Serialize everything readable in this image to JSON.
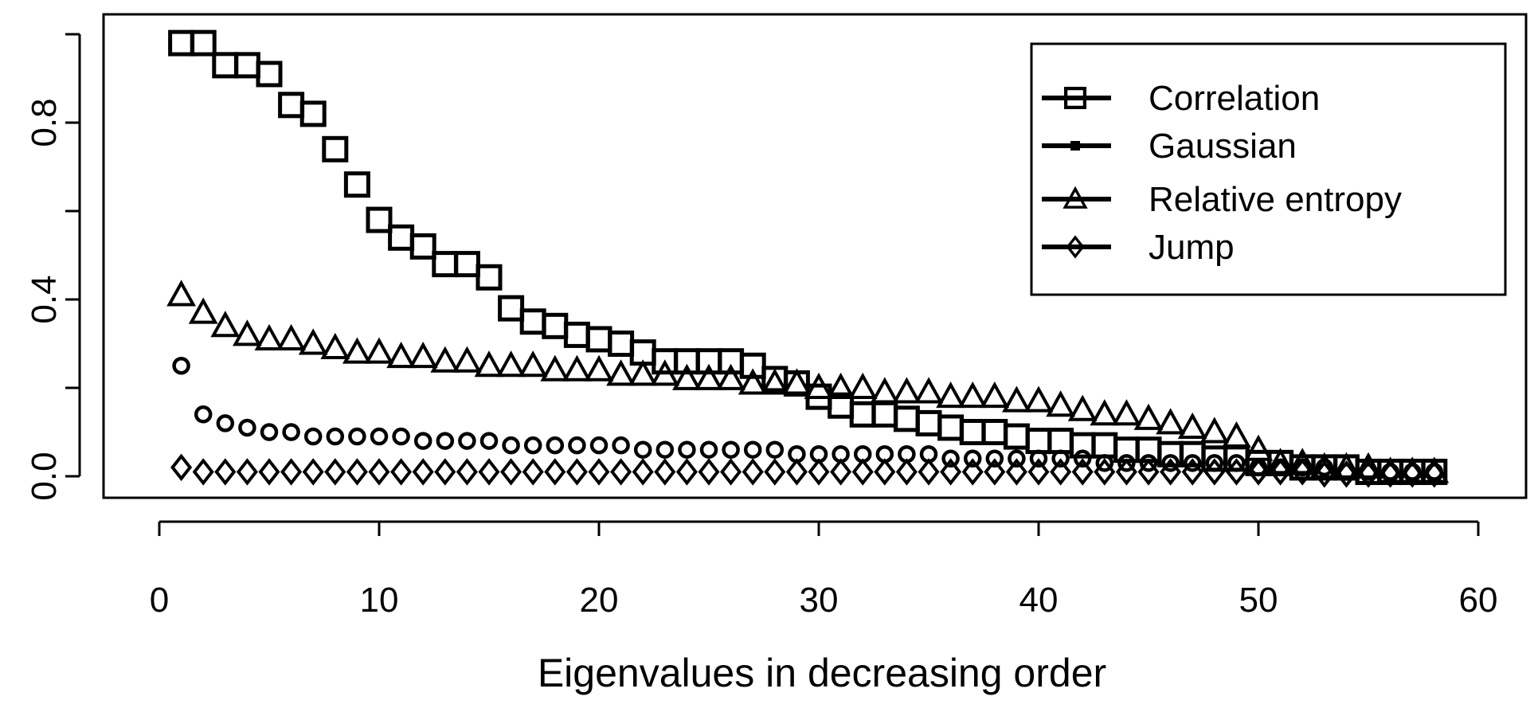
{
  "chart_data": {
    "type": "scatter",
    "title": "",
    "xlabel": "Eigenvalues in decreasing order",
    "ylabel": "",
    "xlim": [
      0,
      60
    ],
    "ylim": [
      0,
      1
    ],
    "x_ticks": [
      "0",
      "10",
      "20",
      "30",
      "40",
      "50",
      "60"
    ],
    "y_ticks": [
      "0.0",
      "0.4",
      "0.8"
    ],
    "legend_position": "top-right",
    "legend": [
      "Correlation",
      "Gaussian",
      "Relative entropy",
      "Jump"
    ],
    "series": [
      {
        "name": "Correlation",
        "marker": "square",
        "x": [
          1,
          2,
          3,
          4,
          5,
          6,
          7,
          8,
          9,
          10,
          11,
          12,
          13,
          14,
          15,
          16,
          17,
          18,
          19,
          20,
          21,
          22,
          23,
          24,
          25,
          26,
          27,
          28,
          29,
          30,
          31,
          32,
          33,
          34,
          35,
          36,
          37,
          38,
          39,
          40,
          41,
          42,
          43,
          44,
          45,
          46,
          47,
          48,
          49,
          50,
          51,
          52,
          53,
          54,
          55,
          56,
          57,
          58
        ],
        "values": [
          0.98,
          0.98,
          0.93,
          0.93,
          0.91,
          0.84,
          0.82,
          0.74,
          0.66,
          0.58,
          0.54,
          0.52,
          0.48,
          0.48,
          0.45,
          0.38,
          0.35,
          0.34,
          0.32,
          0.31,
          0.3,
          0.28,
          0.26,
          0.26,
          0.26,
          0.26,
          0.25,
          0.22,
          0.21,
          0.18,
          0.16,
          0.14,
          0.14,
          0.13,
          0.12,
          0.11,
          0.1,
          0.1,
          0.09,
          0.08,
          0.08,
          0.07,
          0.07,
          0.06,
          0.06,
          0.05,
          0.05,
          0.04,
          0.04,
          0.03,
          0.03,
          0.02,
          0.02,
          0.02,
          0.01,
          0.01,
          0.01,
          0.01
        ]
      },
      {
        "name": "Gaussian",
        "marker": "small-circle",
        "x": [
          1,
          2,
          3,
          4,
          5,
          6,
          7,
          8,
          9,
          10,
          11,
          12,
          13,
          14,
          15,
          16,
          17,
          18,
          19,
          20,
          21,
          22,
          23,
          24,
          25,
          26,
          27,
          28,
          29,
          30,
          31,
          32,
          33,
          34,
          35,
          36,
          37,
          38,
          39,
          40,
          41,
          42,
          43,
          44,
          45,
          46,
          47,
          48,
          49,
          50,
          51,
          52,
          53,
          54,
          55,
          56,
          57,
          58
        ],
        "values": [
          0.25,
          0.14,
          0.12,
          0.11,
          0.1,
          0.1,
          0.09,
          0.09,
          0.09,
          0.09,
          0.09,
          0.08,
          0.08,
          0.08,
          0.08,
          0.07,
          0.07,
          0.07,
          0.07,
          0.07,
          0.07,
          0.06,
          0.06,
          0.06,
          0.06,
          0.06,
          0.06,
          0.06,
          0.05,
          0.05,
          0.05,
          0.05,
          0.05,
          0.05,
          0.05,
          0.04,
          0.04,
          0.04,
          0.04,
          0.04,
          0.04,
          0.04,
          0.03,
          0.03,
          0.03,
          0.03,
          0.03,
          0.03,
          0.03,
          0.02,
          0.02,
          0.02,
          0.02,
          0.01,
          0.01,
          0.01,
          0.01,
          0.01
        ]
      },
      {
        "name": "Relative entropy",
        "marker": "triangle",
        "x": [
          1,
          2,
          3,
          4,
          5,
          6,
          7,
          8,
          9,
          10,
          11,
          12,
          13,
          14,
          15,
          16,
          17,
          18,
          19,
          20,
          21,
          22,
          23,
          24,
          25,
          26,
          27,
          28,
          29,
          30,
          31,
          32,
          33,
          34,
          35,
          36,
          37,
          38,
          39,
          40,
          41,
          42,
          43,
          44,
          45,
          46,
          47,
          48,
          49,
          50,
          51,
          52,
          53,
          54,
          55,
          56,
          57,
          58
        ],
        "values": [
          0.41,
          0.37,
          0.34,
          0.32,
          0.31,
          0.31,
          0.3,
          0.29,
          0.28,
          0.28,
          0.27,
          0.27,
          0.26,
          0.26,
          0.25,
          0.25,
          0.25,
          0.24,
          0.24,
          0.24,
          0.23,
          0.23,
          0.23,
          0.22,
          0.22,
          0.22,
          0.21,
          0.21,
          0.21,
          0.2,
          0.2,
          0.2,
          0.19,
          0.19,
          0.19,
          0.18,
          0.18,
          0.18,
          0.17,
          0.17,
          0.16,
          0.15,
          0.14,
          0.14,
          0.13,
          0.12,
          0.11,
          0.1,
          0.09,
          0.06,
          0.03,
          0.03,
          0.02,
          0.02,
          0.02,
          0.01,
          0.01,
          0.01
        ]
      },
      {
        "name": "Jump",
        "marker": "diamond",
        "x": [
          1,
          2,
          3,
          4,
          5,
          6,
          7,
          8,
          9,
          10,
          11,
          12,
          13,
          14,
          15,
          16,
          17,
          18,
          19,
          20,
          21,
          22,
          23,
          24,
          25,
          26,
          27,
          28,
          29,
          30,
          31,
          32,
          33,
          34,
          35,
          36,
          37,
          38,
          39,
          40,
          41,
          42,
          43,
          44,
          45,
          46,
          47,
          48,
          49,
          50,
          51,
          52,
          53,
          54,
          55,
          56,
          57,
          58
        ],
        "values": [
          0.02,
          0.01,
          0.01,
          0.01,
          0.01,
          0.01,
          0.01,
          0.01,
          0.01,
          0.01,
          0.01,
          0.01,
          0.01,
          0.01,
          0.01,
          0.01,
          0.01,
          0.01,
          0.01,
          0.01,
          0.01,
          0.01,
          0.01,
          0.01,
          0.01,
          0.01,
          0.01,
          0.01,
          0.01,
          0.01,
          0.01,
          0.01,
          0.01,
          0.01,
          0.01,
          0.01,
          0.01,
          0.01,
          0.01,
          0.01,
          0.01,
          0.01,
          0.01,
          0.01,
          0.01,
          0.01,
          0.01,
          0.01,
          0.01,
          0.01,
          0.01,
          0.01,
          0.005,
          0.005,
          0.005,
          0.005,
          0.005,
          0.005
        ]
      }
    ]
  }
}
